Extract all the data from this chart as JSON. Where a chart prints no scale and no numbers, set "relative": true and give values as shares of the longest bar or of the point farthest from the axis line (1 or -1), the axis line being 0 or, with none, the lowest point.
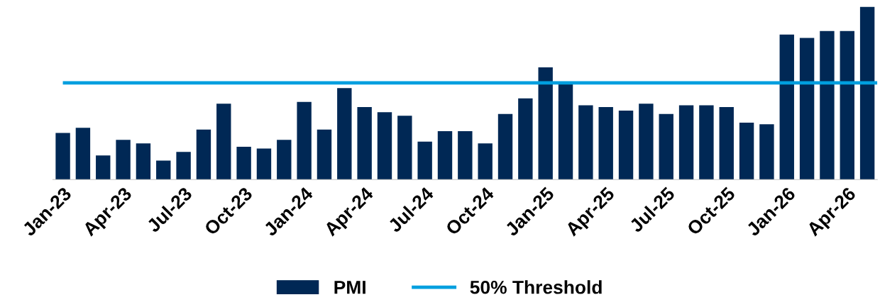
{
  "chart_data": {
    "type": "bar",
    "relative": true,
    "categories": [
      "Jan-23",
      null,
      null,
      "Apr-23",
      null,
      null,
      "Jul-23",
      null,
      null,
      "Oct-23",
      null,
      null,
      "Jan-24",
      null,
      null,
      "Apr-24",
      null,
      null,
      "Jul-24",
      null,
      null,
      "Oct-24",
      null,
      null,
      "Jan-25",
      null,
      null,
      "Apr-25",
      null,
      null,
      "Jul-25",
      null,
      null,
      "Oct-25",
      null,
      null,
      "Jan-26",
      null,
      null,
      "Apr-26",
      null
    ],
    "series": [
      {
        "name": "PMI",
        "color": "#002855",
        "values": [
          0.27,
          0.3,
          0.14,
          0.23,
          0.21,
          0.11,
          0.16,
          0.29,
          0.44,
          0.19,
          0.18,
          0.23,
          0.45,
          0.29,
          0.53,
          0.42,
          0.39,
          0.37,
          0.22,
          0.28,
          0.28,
          0.21,
          0.38,
          0.47,
          0.65,
          0.56,
          0.43,
          0.42,
          0.4,
          0.44,
          0.38,
          0.43,
          0.43,
          0.42,
          0.33,
          0.32,
          0.84,
          0.82,
          0.86,
          0.86,
          1
        ]
      }
    ],
    "ref_lines": [
      {
        "axis": "y",
        "value": 0.56,
        "label": "50% Threshold",
        "color": "#009fdf",
        "line_style": "solid"
      }
    ],
    "legend": "bottom",
    "grid": false
  }
}
